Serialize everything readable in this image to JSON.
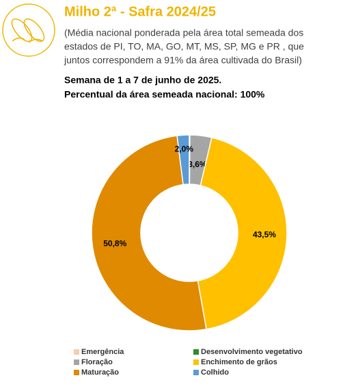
{
  "chart_data": {
    "type": "pie",
    "donut": true,
    "title": "Milho 2ª - Safra 2024/25",
    "subtitle_lines": [
      "(Média nacional ponderada pela área total semeada dos",
      "estados de PI, TO, MA, GO, MT, MS, SP, MG e PR , que",
      "juntos correspondem a 91% da área cultivada do Brasil)"
    ],
    "week": "Semana de 1 a 7 de junho de 2025.",
    "area_note": "Percentual da área semeada nacional: 100%",
    "categories": [
      "Emergência",
      "Desenvolvimento vegetativo",
      "Floração",
      "Enchimento de grãos",
      "Maturação",
      "Colhido"
    ],
    "values": [
      0,
      0.1,
      3.6,
      43.5,
      50.8,
      2.0
    ],
    "value_labels": [
      null,
      null,
      "3,6%",
      "43,5%",
      "50,8%",
      "2,0%"
    ],
    "colors": [
      "#f8cbad",
      "#2e8b2e",
      "#a5a5a5",
      "#ffc000",
      "#df8a00",
      "#5b9bd5"
    ]
  }
}
